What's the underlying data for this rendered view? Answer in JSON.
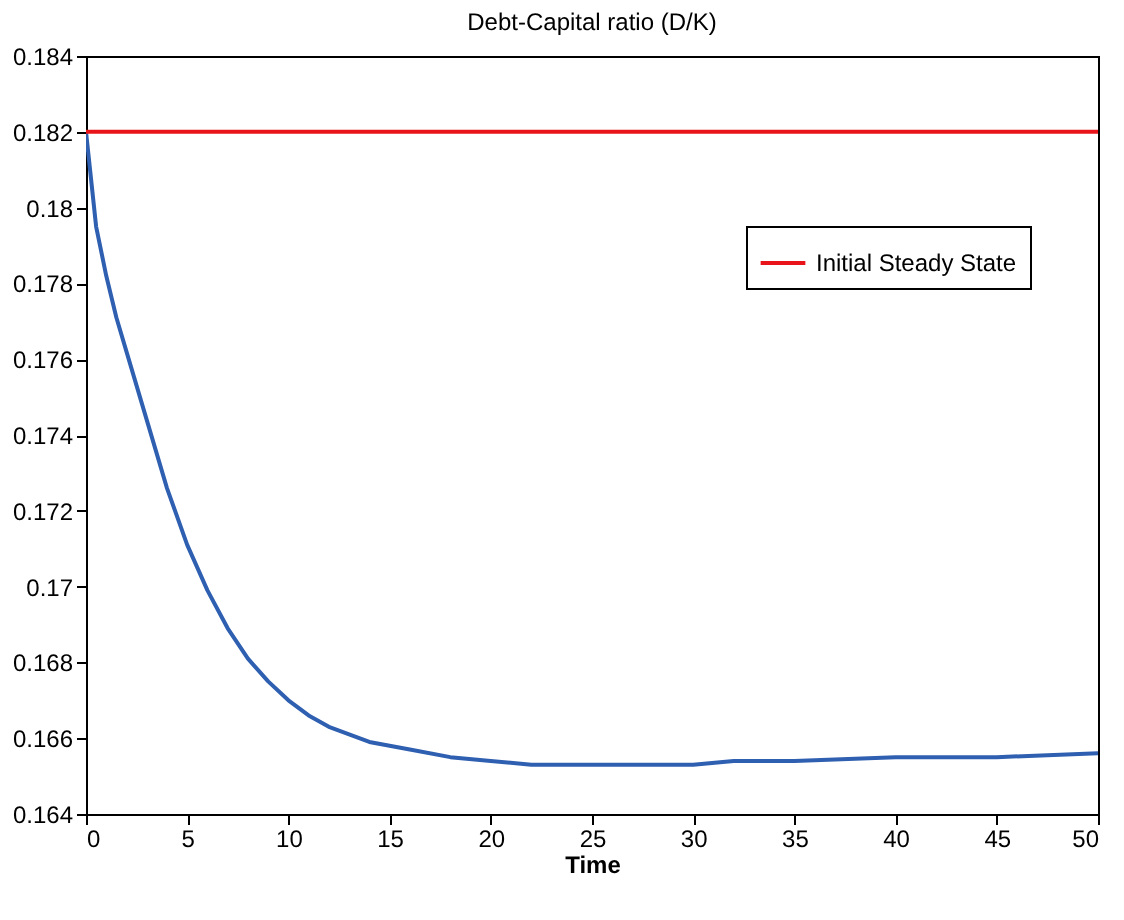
{
  "chart_data": {
    "type": "line",
    "title": "Debt-Capital ratio (D/K)",
    "xlabel": "Time",
    "series": [
      {
        "name": null,
        "color": "#2e5fb0",
        "x": [
          0,
          0.5,
          1,
          1.5,
          2,
          3,
          4,
          5,
          6,
          7,
          8,
          9,
          10,
          11,
          12,
          13,
          14,
          15,
          16,
          18,
          20,
          22,
          25,
          30,
          32,
          35,
          40,
          45,
          50
        ],
        "values": [
          0.182,
          0.1795,
          0.1782,
          0.1771,
          0.1762,
          0.1744,
          0.1726,
          0.1711,
          0.1699,
          0.1689,
          0.1681,
          0.1675,
          0.167,
          0.1666,
          0.1663,
          0.1661,
          0.1659,
          0.1658,
          0.1657,
          0.1655,
          0.1654,
          0.1653,
          0.1653,
          0.1653,
          0.1654,
          0.1654,
          0.1655,
          0.1655,
          0.1656
        ]
      },
      {
        "name": "Initial Steady State",
        "color": "#e8141a",
        "x": [
          0,
          50
        ],
        "values": [
          0.182,
          0.182
        ]
      }
    ],
    "xlim": [
      0,
      50
    ],
    "xticks": [
      0,
      5,
      10,
      15,
      20,
      25,
      30,
      35,
      40,
      45,
      50
    ],
    "ylim": [
      0.164,
      0.184
    ],
    "yticks": [
      0.164,
      0.166,
      0.168,
      0.17,
      0.172,
      0.174,
      0.176,
      0.178,
      0.18,
      0.182,
      0.184
    ],
    "grid": false,
    "legend": "top right",
    "marker": "none",
    "line_style": "solid"
  }
}
